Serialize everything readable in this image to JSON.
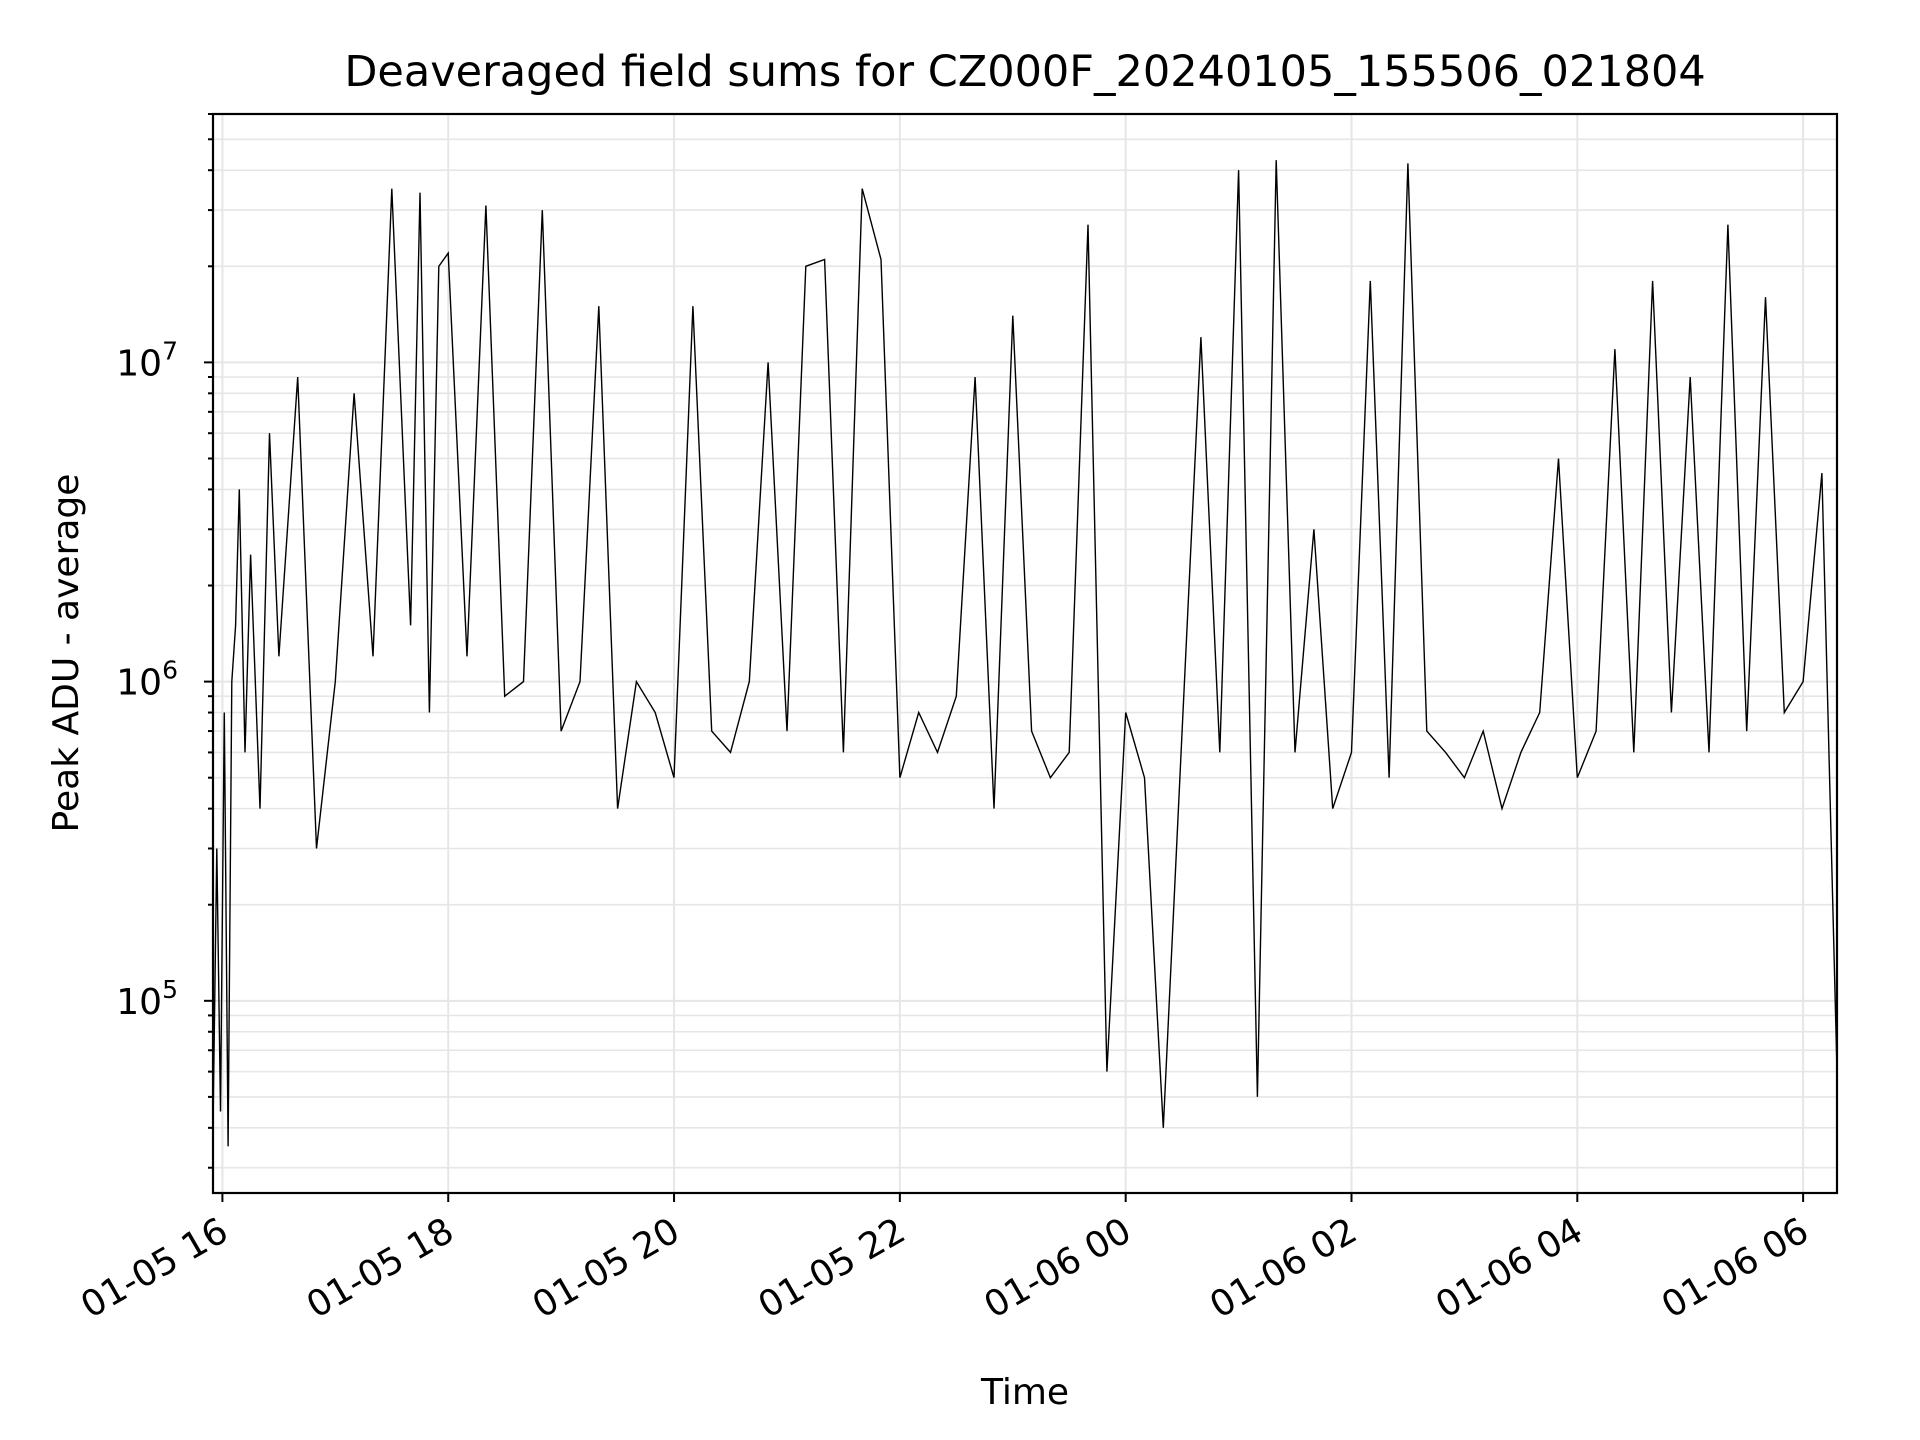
{
  "chart_data": {
    "type": "line",
    "title": "Deaveraged field sums for CZ000F_20240105_155506_021804",
    "xlabel": "Time",
    "ylabel": "Peak ADU - average",
    "yscale": "log",
    "ylim": [
      25000,
      60000000
    ],
    "xlim": [
      "2024-01-05 15:55",
      "2024-01-06 06:18"
    ],
    "grid": true,
    "line_color": "#000000",
    "grid_color": "#e6e6e6",
    "x_ticks": [
      {
        "t": "2024-01-05 16:00",
        "label": "01-05 16"
      },
      {
        "t": "2024-01-05 18:00",
        "label": "01-05 18"
      },
      {
        "t": "2024-01-05 20:00",
        "label": "01-05 20"
      },
      {
        "t": "2024-01-05 22:00",
        "label": "01-05 22"
      },
      {
        "t": "2024-01-06 00:00",
        "label": "01-06 00"
      },
      {
        "t": "2024-01-06 02:00",
        "label": "01-06 02"
      },
      {
        "t": "2024-01-06 04:00",
        "label": "01-06 04"
      },
      {
        "t": "2024-01-06 06:00",
        "label": "01-06 06"
      }
    ],
    "y_ticks": [
      {
        "value": 100000,
        "base": "10",
        "exp": "5"
      },
      {
        "value": 1000000,
        "base": "10",
        "exp": "6"
      },
      {
        "value": 10000000,
        "base": "10",
        "exp": "7"
      }
    ],
    "series": [
      {
        "x": [
          "2024-01-05 15:55",
          "2024-01-05 15:57",
          "2024-01-05 15:59",
          "2024-01-05 16:01",
          "2024-01-05 16:03",
          "2024-01-05 16:05",
          "2024-01-05 16:07",
          "2024-01-05 16:09",
          "2024-01-05 16:12",
          "2024-01-05 16:15",
          "2024-01-05 16:20",
          "2024-01-05 16:25",
          "2024-01-05 16:30",
          "2024-01-05 16:40",
          "2024-01-05 16:50",
          "2024-01-05 17:00",
          "2024-01-05 17:10",
          "2024-01-05 17:20",
          "2024-01-05 17:30",
          "2024-01-05 17:40",
          "2024-01-05 17:45",
          "2024-01-05 17:50",
          "2024-01-05 17:55",
          "2024-01-05 18:00",
          "2024-01-05 18:10",
          "2024-01-05 18:20",
          "2024-01-05 18:30",
          "2024-01-05 18:40",
          "2024-01-05 18:50",
          "2024-01-05 19:00",
          "2024-01-05 19:10",
          "2024-01-05 19:20",
          "2024-01-05 19:30",
          "2024-01-05 19:40",
          "2024-01-05 19:50",
          "2024-01-05 20:00",
          "2024-01-05 20:10",
          "2024-01-05 20:20",
          "2024-01-05 20:30",
          "2024-01-05 20:40",
          "2024-01-05 20:50",
          "2024-01-05 21:00",
          "2024-01-05 21:10",
          "2024-01-05 21:20",
          "2024-01-05 21:30",
          "2024-01-05 21:40",
          "2024-01-05 21:50",
          "2024-01-05 22:00",
          "2024-01-05 22:10",
          "2024-01-05 22:20",
          "2024-01-05 22:30",
          "2024-01-05 22:40",
          "2024-01-05 22:50",
          "2024-01-05 23:00",
          "2024-01-05 23:10",
          "2024-01-05 23:20",
          "2024-01-05 23:30",
          "2024-01-05 23:40",
          "2024-01-05 23:50",
          "2024-01-06 00:00",
          "2024-01-06 00:10",
          "2024-01-06 00:20",
          "2024-01-06 00:30",
          "2024-01-06 00:40",
          "2024-01-06 00:50",
          "2024-01-06 01:00",
          "2024-01-06 01:10",
          "2024-01-06 01:20",
          "2024-01-06 01:30",
          "2024-01-06 01:40",
          "2024-01-06 01:50",
          "2024-01-06 02:00",
          "2024-01-06 02:10",
          "2024-01-06 02:20",
          "2024-01-06 02:30",
          "2024-01-06 02:40",
          "2024-01-06 02:50",
          "2024-01-06 03:00",
          "2024-01-06 03:10",
          "2024-01-06 03:20",
          "2024-01-06 03:30",
          "2024-01-06 03:40",
          "2024-01-06 03:50",
          "2024-01-06 04:00",
          "2024-01-06 04:10",
          "2024-01-06 04:20",
          "2024-01-06 04:30",
          "2024-01-06 04:40",
          "2024-01-06 04:50",
          "2024-01-06 05:00",
          "2024-01-06 05:10",
          "2024-01-06 05:20",
          "2024-01-06 05:30",
          "2024-01-06 05:40",
          "2024-01-06 05:50",
          "2024-01-06 06:00",
          "2024-01-06 06:10",
          "2024-01-06 06:18"
        ],
        "y": [
          40000,
          300000,
          45000,
          800000,
          35000,
          1000000,
          1500000,
          4000000,
          600000,
          2500000,
          400000,
          6000000,
          1200000,
          9000000,
          300000,
          1000000,
          8000000,
          1200000,
          35000000,
          1500000,
          34000000,
          800000,
          20000000,
          22000000,
          1200000,
          31000000,
          900000,
          1000000,
          30000000,
          700000,
          1000000,
          15000000,
          400000,
          1000000,
          800000,
          500000,
          15000000,
          700000,
          600000,
          1000000,
          10000000,
          700000,
          20000000,
          21000000,
          600000,
          35000000,
          21000000,
          500000,
          800000,
          600000,
          900000,
          9000000,
          400000,
          14000000,
          700000,
          500000,
          600000,
          27000000,
          60000,
          800000,
          500000,
          40000,
          700000,
          12000000,
          600000,
          40000000,
          50000,
          43000000,
          600000,
          3000000,
          400000,
          600000,
          18000000,
          500000,
          42000000,
          700000,
          600000,
          500000,
          700000,
          400000,
          600000,
          800000,
          5000000,
          500000,
          700000,
          11000000,
          600000,
          18000000,
          800000,
          9000000,
          600000,
          27000000,
          700000,
          16000000,
          800000,
          1000000,
          4500000,
          60000
        ]
      }
    ]
  }
}
